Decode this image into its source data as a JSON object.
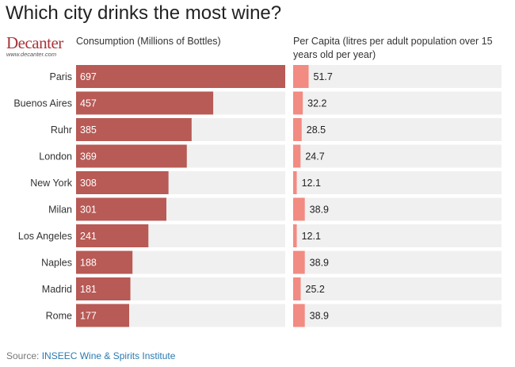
{
  "title": "Which city drinks the most wine?",
  "logo": {
    "brand": "Decanter",
    "url": "www.decanter.com"
  },
  "source": {
    "label": "Source:",
    "name": "INSEEC Wine & Spirits Institute"
  },
  "colors": {
    "consumption_bar": "#b85a55",
    "per_capita_bar": "#f28b82",
    "track": "#f0f0f0"
  },
  "chart_data": [
    {
      "type": "bar",
      "orientation": "horizontal",
      "title": "Consumption (Millions of Bottles)",
      "categories": [
        "Paris",
        "Buenos Aires",
        "Ruhr",
        "London",
        "New York",
        "Milan",
        "Los Angeles",
        "Naples",
        "Madrid",
        "Rome"
      ],
      "values": [
        697,
        457,
        385,
        369,
        308,
        301,
        241,
        188,
        181,
        177
      ],
      "xlim": [
        0,
        697
      ]
    },
    {
      "type": "bar",
      "orientation": "horizontal",
      "title": "Per Capita (litres per adult population over 15 years old per year)",
      "categories": [
        "Paris",
        "Buenos Aires",
        "Ruhr",
        "London",
        "New York",
        "Milan",
        "Los Angeles",
        "Naples",
        "Madrid",
        "Rome"
      ],
      "values": [
        51.7,
        32.2,
        28.5,
        24.7,
        12.1,
        38.9,
        12.1,
        38.9,
        25.2,
        38.9
      ],
      "xlim": [
        0,
        697
      ]
    }
  ]
}
